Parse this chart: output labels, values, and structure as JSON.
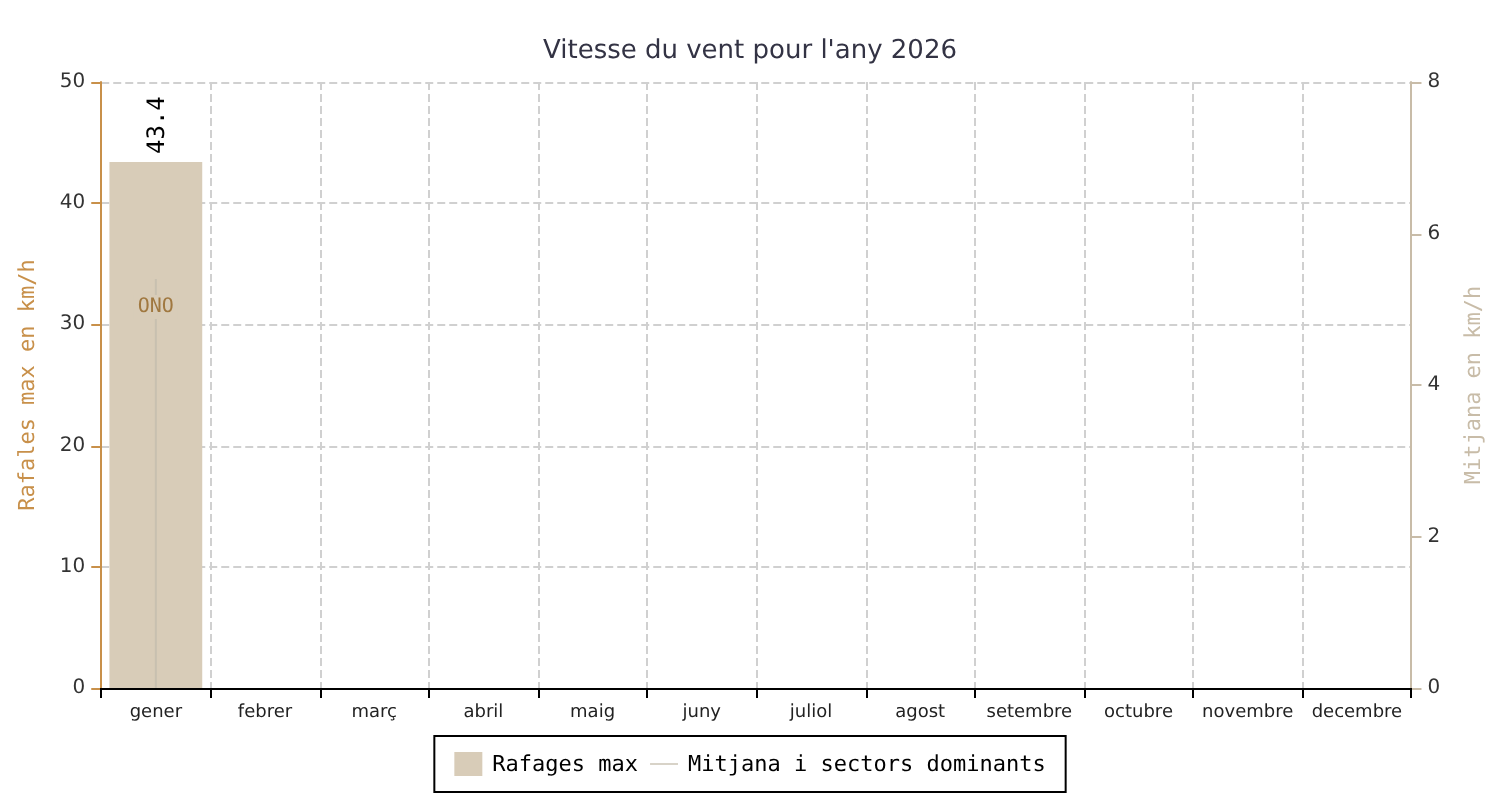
{
  "chart_data": {
    "type": "bar",
    "title": "Vitesse du vent pour l'any 2026",
    "categories": [
      "gener",
      "febrer",
      "març",
      "abril",
      "maig",
      "juny",
      "juliol",
      "agost",
      "setembre",
      "octubre",
      "novembre",
      "decembre"
    ],
    "series": [
      {
        "name": "Rafages max",
        "color": "#d8ccb8",
        "values": [
          43.4,
          null,
          null,
          null,
          null,
          null,
          null,
          null,
          null,
          null,
          null,
          null
        ],
        "value_labels": [
          "43.4",
          null,
          null,
          null,
          null,
          null,
          null,
          null,
          null,
          null,
          null,
          null
        ]
      },
      {
        "name": "Mitjana i sectors dominants",
        "type": "bar",
        "axis": "y2",
        "color": "#c8c0b0",
        "values": [
          5.4,
          null,
          null,
          null,
          null,
          null,
          null,
          null,
          null,
          null,
          null,
          null
        ],
        "value_labels": [
          "ONO",
          null,
          null,
          null,
          null,
          null,
          null,
          null,
          null,
          null,
          null,
          null
        ]
      }
    ],
    "ylabel": "Rafales max en km/h",
    "y2label": "Mitjana en km/h",
    "ylim": [
      0,
      50
    ],
    "yticks": [
      0,
      10,
      20,
      30,
      40,
      50
    ],
    "y2lim": [
      0,
      8
    ],
    "y2ticks": [
      0,
      2,
      4,
      6,
      8
    ],
    "grid": true,
    "legend": "bottom"
  }
}
